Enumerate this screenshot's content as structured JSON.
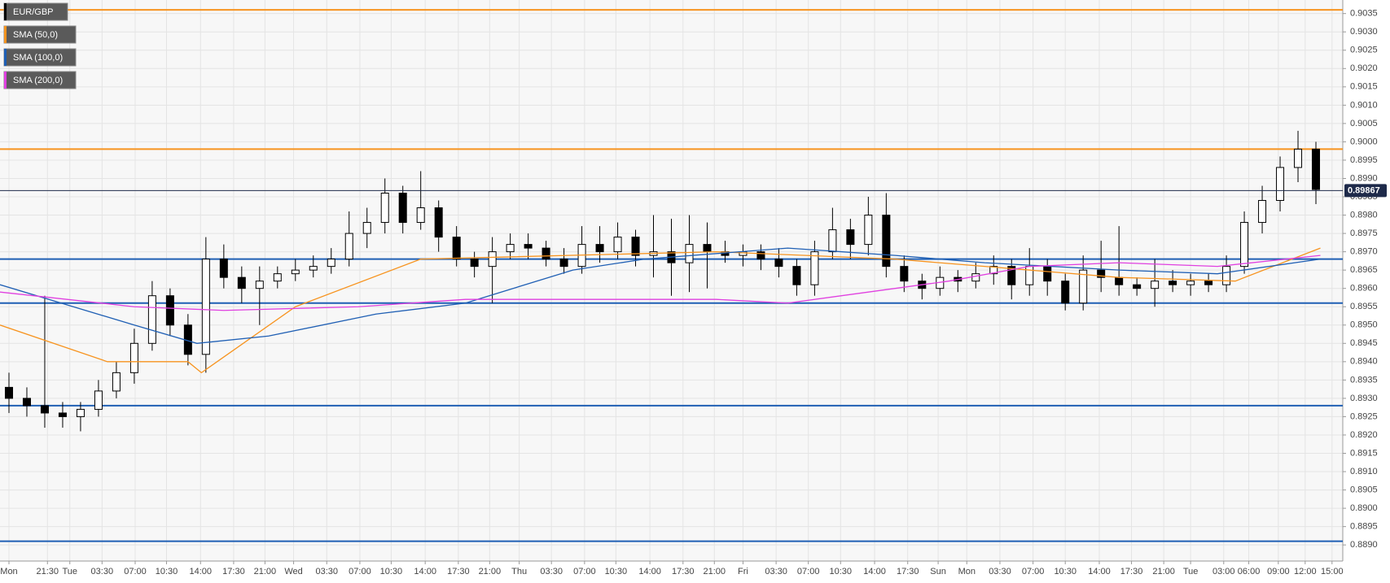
{
  "chart_data": {
    "type": "candlestick",
    "name": "EUR/GBP",
    "x": [
      1,
      3,
      5,
      7,
      9,
      11,
      13,
      15,
      17,
      19,
      21,
      23,
      25,
      27,
      29,
      31,
      33,
      35,
      37,
      39,
      41,
      43,
      45,
      47,
      49,
      51,
      53,
      55,
      57,
      59,
      61,
      63,
      65,
      67,
      69,
      71,
      73,
      75,
      77,
      79,
      81,
      83,
      85,
      87,
      89,
      91,
      93,
      95,
      97,
      99,
      101,
      103,
      105,
      107,
      109,
      111,
      113,
      115,
      117,
      119,
      121,
      123,
      125,
      127,
      129,
      131,
      133,
      135,
      137,
      139,
      141,
      143,
      145,
      147
    ],
    "open": [
      0.8933,
      0.893,
      0.8928,
      0.8926,
      0.8925,
      0.8927,
      0.8932,
      0.8937,
      0.8945,
      0.8958,
      0.895,
      0.8942,
      0.8968,
      0.8963,
      0.896,
      0.8962,
      0.8964,
      0.8965,
      0.8966,
      0.8968,
      0.8975,
      0.8978,
      0.8986,
      0.8978,
      0.8982,
      0.8974,
      0.8968,
      0.8966,
      0.897,
      0.8972,
      0.8971,
      0.8968,
      0.8966,
      0.8972,
      0.897,
      0.8974,
      0.8969,
      0.897,
      0.8967,
      0.8972,
      0.897,
      0.8969,
      0.897,
      0.8968,
      0.8966,
      0.8961,
      0.897,
      0.8976,
      0.8972,
      0.898,
      0.8966,
      0.8962,
      0.896,
      0.8963,
      0.8962,
      0.8964,
      0.8966,
      0.8961,
      0.8966,
      0.8962,
      0.8956,
      0.8965,
      0.8963,
      0.8961,
      0.896,
      0.8962,
      0.8961,
      0.8962,
      0.8961,
      0.8966,
      0.8978,
      0.8984,
      0.8993,
      0.8998
    ],
    "high": [
      0.8937,
      0.8933,
      0.8958,
      0.8929,
      0.8929,
      0.8935,
      0.894,
      0.8949,
      0.8962,
      0.896,
      0.8953,
      0.8974,
      0.8972,
      0.8966,
      0.8966,
      0.8966,
      0.8968,
      0.8969,
      0.8971,
      0.8981,
      0.8982,
      0.899,
      0.8988,
      0.8992,
      0.8984,
      0.8977,
      0.897,
      0.8974,
      0.8975,
      0.8975,
      0.8973,
      0.8971,
      0.8977,
      0.8977,
      0.8978,
      0.8976,
      0.898,
      0.8979,
      0.898,
      0.8978,
      0.8973,
      0.8972,
      0.8972,
      0.8971,
      0.8968,
      0.8973,
      0.8982,
      0.8979,
      0.8985,
      0.8986,
      0.8969,
      0.8964,
      0.8966,
      0.8965,
      0.8967,
      0.8969,
      0.8968,
      0.8971,
      0.8968,
      0.8964,
      0.8969,
      0.8973,
      0.8977,
      0.8963,
      0.8968,
      0.8965,
      0.8964,
      0.8964,
      0.8969,
      0.8981,
      0.8988,
      0.8996,
      0.9003,
      0.9
    ],
    "low": [
      0.8926,
      0.8925,
      0.8922,
      0.8922,
      0.8921,
      0.8925,
      0.893,
      0.8934,
      0.8943,
      0.8947,
      0.8939,
      0.8937,
      0.896,
      0.8956,
      0.895,
      0.896,
      0.8962,
      0.8963,
      0.8964,
      0.8966,
      0.8971,
      0.8975,
      0.8975,
      0.8976,
      0.897,
      0.8966,
      0.8963,
      0.8956,
      0.8968,
      0.8968,
      0.8966,
      0.8964,
      0.8964,
      0.8967,
      0.8968,
      0.8966,
      0.8963,
      0.8958,
      0.8959,
      0.896,
      0.8967,
      0.8966,
      0.8965,
      0.8963,
      0.8958,
      0.8958,
      0.8968,
      0.8968,
      0.8969,
      0.8963,
      0.8959,
      0.8957,
      0.8958,
      0.8959,
      0.896,
      0.8961,
      0.8957,
      0.8958,
      0.8958,
      0.8954,
      0.8954,
      0.8959,
      0.8958,
      0.8958,
      0.8955,
      0.8959,
      0.8958,
      0.8959,
      0.8959,
      0.8964,
      0.8975,
      0.8981,
      0.8989,
      0.8983
    ],
    "close": [
      0.893,
      0.8928,
      0.8926,
      0.8925,
      0.8927,
      0.8932,
      0.8937,
      0.8945,
      0.8958,
      0.895,
      0.8942,
      0.8968,
      0.8963,
      0.896,
      0.8962,
      0.8964,
      0.8965,
      0.8966,
      0.8968,
      0.8975,
      0.8978,
      0.8986,
      0.8978,
      0.8982,
      0.8974,
      0.8968,
      0.8966,
      0.897,
      0.8972,
      0.8971,
      0.8968,
      0.8966,
      0.8972,
      0.897,
      0.8974,
      0.8969,
      0.897,
      0.8967,
      0.8972,
      0.897,
      0.8969,
      0.897,
      0.8968,
      0.8966,
      0.8961,
      0.897,
      0.8976,
      0.8972,
      0.898,
      0.8966,
      0.8962,
      0.896,
      0.8963,
      0.8962,
      0.8964,
      0.8966,
      0.8961,
      0.8966,
      0.8962,
      0.8956,
      0.8965,
      0.8963,
      0.8961,
      0.896,
      0.8962,
      0.8961,
      0.8962,
      0.8961,
      0.8966,
      0.8978,
      0.8984,
      0.8993,
      0.8998,
      0.8987
    ],
    "series": [
      {
        "name": "SMA (50,0)",
        "color": "#f7931e",
        "x": [
          0,
          12,
          14,
          21,
          22.5,
          33,
          47,
          80,
          100,
          110,
          125,
          138,
          147.5
        ],
        "values": [
          0.895,
          0.894,
          0.894,
          0.894,
          0.8937,
          0.8955,
          0.8968,
          0.897,
          0.8968,
          0.8966,
          0.8963,
          0.8962,
          0.8971
        ]
      },
      {
        "name": "SMA (100,0)",
        "color": "#1f5fb4",
        "x": [
          0,
          15,
          22,
          30,
          42,
          52,
          64,
          72,
          88,
          100,
          110,
          125,
          136,
          147.5
        ],
        "values": [
          0.8961,
          0.895,
          0.8945,
          0.8947,
          0.8953,
          0.8956,
          0.8965,
          0.8968,
          0.8971,
          0.8969,
          0.8967,
          0.8965,
          0.8964,
          0.8968
        ]
      },
      {
        "name": "SMA (200,0)",
        "color": "#e040e0",
        "x": [
          0,
          15,
          25,
          40,
          52,
          80,
          88,
          100,
          106,
          115,
          125,
          136,
          147.5
        ],
        "values": [
          0.8959,
          0.8955,
          0.8954,
          0.8955,
          0.8957,
          0.8957,
          0.8956,
          0.896,
          0.8962,
          0.8966,
          0.8967,
          0.8966,
          0.8969
        ]
      }
    ],
    "hlines": [
      {
        "value": 0.9036,
        "color": "#f7931e"
      },
      {
        "value": 0.8998,
        "color": "#f7931e"
      },
      {
        "value": 0.8968,
        "color": "#1f5fb4"
      },
      {
        "value": 0.8956,
        "color": "#1f5fb4"
      },
      {
        "value": 0.8928,
        "color": "#1f5fb4"
      },
      {
        "value": 0.8891,
        "color": "#1f5fb4"
      }
    ],
    "last_price": 0.89867,
    "xlim": [
      0,
      150
    ],
    "ylim": [
      0.88856,
      0.90387
    ],
    "yticks": [
      {
        "value": 0.889,
        "label": "0.8890"
      },
      {
        "value": 0.8895,
        "label": "0.8895"
      },
      {
        "value": 0.89,
        "label": "0.8900"
      },
      {
        "value": 0.8905,
        "label": "0.8905"
      },
      {
        "value": 0.891,
        "label": "0.8910"
      },
      {
        "value": 0.8915,
        "label": "0.8915"
      },
      {
        "value": 0.892,
        "label": "0.8920"
      },
      {
        "value": 0.8925,
        "label": "0.8925"
      },
      {
        "value": 0.893,
        "label": "0.8930"
      },
      {
        "value": 0.8935,
        "label": "0.8935"
      },
      {
        "value": 0.894,
        "label": "0.8940"
      },
      {
        "value": 0.8945,
        "label": "0.8945"
      },
      {
        "value": 0.895,
        "label": "0.8950"
      },
      {
        "value": 0.8955,
        "label": "0.8955"
      },
      {
        "value": 0.896,
        "label": "0.8960"
      },
      {
        "value": 0.8965,
        "label": "0.8965"
      },
      {
        "value": 0.897,
        "label": "0.8970"
      },
      {
        "value": 0.8975,
        "label": "0.8975"
      },
      {
        "value": 0.898,
        "label": "0.8980"
      },
      {
        "value": 0.8985,
        "label": "0.8985"
      },
      {
        "value": 0.899,
        "label": "0.8990"
      },
      {
        "value": 0.8995,
        "label": "0.8995"
      },
      {
        "value": 0.9,
        "label": "0.9000"
      },
      {
        "value": 0.9005,
        "label": "0.9005"
      },
      {
        "value": 0.901,
        "label": "0.9010"
      },
      {
        "value": 0.9015,
        "label": "0.9015"
      },
      {
        "value": 0.902,
        "label": "0.9020"
      },
      {
        "value": 0.9025,
        "label": "0.9025"
      },
      {
        "value": 0.903,
        "label": "0.9030"
      },
      {
        "value": 0.9035,
        "label": "0.9035"
      }
    ],
    "xticks": [
      {
        "value": 1.0,
        "label": "Mon"
      },
      {
        "value": 5.3,
        "label": "21:30"
      },
      {
        "value": 7.8,
        "label": "Tue"
      },
      {
        "value": 11.4,
        "label": "03:30"
      },
      {
        "value": 15.1,
        "label": "07:00"
      },
      {
        "value": 18.6,
        "label": "10:30"
      },
      {
        "value": 22.4,
        "label": "14:00"
      },
      {
        "value": 26.1,
        "label": "17:30"
      },
      {
        "value": 29.6,
        "label": "21:00"
      },
      {
        "value": 32.8,
        "label": "Wed"
      },
      {
        "value": 36.5,
        "label": "03:30"
      },
      {
        "value": 40.2,
        "label": "07:00"
      },
      {
        "value": 43.7,
        "label": "10:30"
      },
      {
        "value": 47.5,
        "label": "14:00"
      },
      {
        "value": 51.2,
        "label": "17:30"
      },
      {
        "value": 54.7,
        "label": "21:00"
      },
      {
        "value": 58.0,
        "label": "Thu"
      },
      {
        "value": 61.6,
        "label": "03:30"
      },
      {
        "value": 65.3,
        "label": "07:00"
      },
      {
        "value": 68.8,
        "label": "10:30"
      },
      {
        "value": 72.6,
        "label": "14:00"
      },
      {
        "value": 76.3,
        "label": "17:30"
      },
      {
        "value": 79.8,
        "label": "21:00"
      },
      {
        "value": 83.0,
        "label": "Fri"
      },
      {
        "value": 86.7,
        "label": "03:30"
      },
      {
        "value": 90.3,
        "label": "07:00"
      },
      {
        "value": 93.9,
        "label": "10:30"
      },
      {
        "value": 97.7,
        "label": "14:00"
      },
      {
        "value": 101.4,
        "label": "17:30"
      },
      {
        "value": 104.8,
        "label": "Sun"
      },
      {
        "value": 108.0,
        "label": "Mon"
      },
      {
        "value": 111.7,
        "label": "03:30"
      },
      {
        "value": 115.4,
        "label": "07:00"
      },
      {
        "value": 119.0,
        "label": "10:30"
      },
      {
        "value": 122.8,
        "label": "14:00"
      },
      {
        "value": 126.4,
        "label": "17:30"
      },
      {
        "value": 130.0,
        "label": "21:00"
      },
      {
        "value": 133.0,
        "label": "Tue"
      },
      {
        "value": 136.7,
        "label": "03:00"
      },
      {
        "value": 139.5,
        "label": "06:00"
      },
      {
        "value": 142.8,
        "label": "09:00"
      },
      {
        "value": 145.8,
        "label": "12:00"
      },
      {
        "value": 148.8,
        "label": "15:00"
      }
    ],
    "grid": true
  }
}
